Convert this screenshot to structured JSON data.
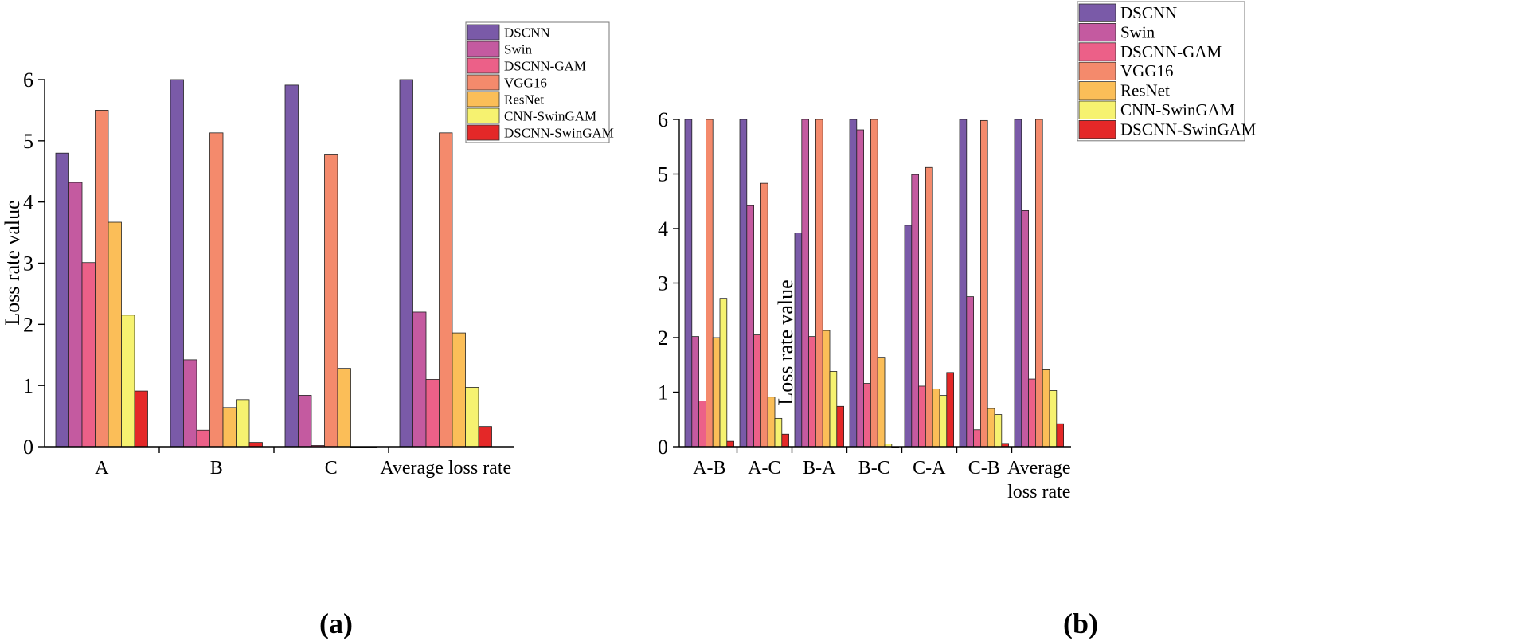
{
  "colors": {
    "DSCNN": "#7a5aa8",
    "Swin": "#c45aa0",
    "DSCNN-GAM": "#ec6088",
    "VGG16": "#f48a6c",
    "ResNet": "#fbbe58",
    "CNN-SwinGAM": "#f6f270",
    "DSCNN-SwinGAM": "#e42828"
  },
  "chart_data": [
    {
      "type": "bar",
      "panel_label": "(a)",
      "ylabel": "Loss rate value",
      "ylim": [
        0,
        6
      ],
      "yticks": [
        "0",
        "1",
        "2",
        "3",
        "4",
        "5",
        "6"
      ],
      "categories": [
        "A",
        "B",
        "C",
        "Average loss rate"
      ],
      "legend": "top-right",
      "series": [
        {
          "name": "DSCNN",
          "values": [
            4.8,
            6.0,
            5.91,
            6.0
          ]
        },
        {
          "name": "Swin",
          "values": [
            4.32,
            1.42,
            0.84,
            2.2
          ]
        },
        {
          "name": "DSCNN-GAM",
          "values": [
            3.01,
            0.27,
            0.02,
            1.1
          ]
        },
        {
          "name": "VGG16",
          "values": [
            5.5,
            5.13,
            4.77,
            5.13
          ]
        },
        {
          "name": "ResNet",
          "values": [
            3.67,
            0.64,
            1.28,
            1.86
          ]
        },
        {
          "name": "CNN-SwinGAM",
          "values": [
            2.15,
            0.77,
            0.0,
            0.97
          ]
        },
        {
          "name": "DSCNN-SwinGAM",
          "values": [
            0.91,
            0.07,
            0.0,
            0.33
          ]
        }
      ]
    },
    {
      "type": "bar",
      "panel_label": "(b)",
      "ylabel": "Loss rate value",
      "ylim": [
        0,
        6
      ],
      "yticks": [
        "0",
        "1",
        "2",
        "3",
        "4",
        "5",
        "6"
      ],
      "categories": [
        "A-B",
        "A-C",
        "B-A",
        "B-C",
        "C-A",
        "C-B",
        "Average loss rate"
      ],
      "legend": "top-right",
      "series": [
        {
          "name": "DSCNN",
          "values": [
            6.0,
            6.0,
            3.92,
            6.0,
            4.06,
            6.0,
            6.0
          ]
        },
        {
          "name": "Swin",
          "values": [
            2.02,
            4.42,
            6.0,
            5.81,
            4.99,
            2.75,
            4.33
          ]
        },
        {
          "name": "DSCNN-GAM",
          "values": [
            0.84,
            2.05,
            2.02,
            1.16,
            1.11,
            0.31,
            1.24
          ]
        },
        {
          "name": "VGG16",
          "values": [
            6.0,
            4.83,
            6.0,
            6.0,
            5.12,
            5.98,
            6.0
          ]
        },
        {
          "name": "ResNet",
          "values": [
            2.0,
            0.91,
            2.13,
            1.64,
            1.06,
            0.7,
            1.41
          ]
        },
        {
          "name": "CNN-SwinGAM",
          "values": [
            2.72,
            0.52,
            1.38,
            0.05,
            0.94,
            0.59,
            1.03
          ]
        },
        {
          "name": "DSCNN-SwinGAM",
          "values": [
            0.1,
            0.23,
            0.74,
            0.0,
            1.36,
            0.06,
            0.42
          ]
        }
      ]
    }
  ]
}
